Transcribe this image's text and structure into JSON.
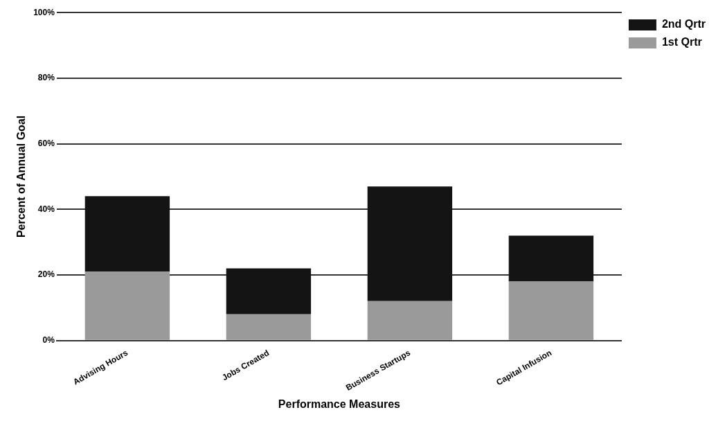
{
  "chart_data": {
    "type": "bar",
    "stacked": true,
    "xlabel": "Performance Measures",
    "ylabel": "Percent of Annual Goal",
    "categories": [
      "Advising Hours",
      "Jobs Created",
      "Business Startups",
      "Capital Infusion"
    ],
    "series": [
      {
        "name": "1st Qrtr",
        "color": "#9a9a9a",
        "values": [
          21,
          8,
          12,
          18
        ]
      },
      {
        "name": "2nd Qrtr",
        "color": "#141414",
        "values": [
          23,
          14,
          35,
          14
        ]
      }
    ],
    "ylim": [
      0,
      100
    ],
    "yticks": [
      {
        "value": 0,
        "label": "0%"
      },
      {
        "value": 20,
        "label": "20%"
      },
      {
        "value": 40,
        "label": "40%"
      },
      {
        "value": 60,
        "label": "60%"
      },
      {
        "value": 80,
        "label": "80%"
      },
      {
        "value": 100,
        "label": "100%"
      }
    ],
    "grid": "y",
    "legend": "top right"
  }
}
